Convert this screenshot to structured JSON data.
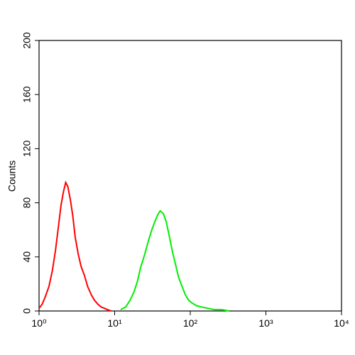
{
  "chart_data": {
    "type": "line",
    "y_label": "Counts",
    "x_log": true,
    "xlim": [
      1,
      10000
    ],
    "xticks": [
      {
        "value": 1,
        "label": "10⁰"
      },
      {
        "value": 10,
        "label": "10¹"
      },
      {
        "value": 100,
        "label": "10²"
      },
      {
        "value": 1000,
        "label": "10³"
      },
      {
        "value": 10000,
        "label": "10⁴"
      }
    ],
    "ylim": [
      0,
      200
    ],
    "yticks": [
      0,
      40,
      80,
      120,
      160,
      200
    ],
    "series": [
      {
        "color": "#ff0000",
        "x": [
          1.0,
          1.1,
          1.2,
          1.35,
          1.5,
          1.65,
          1.8,
          1.95,
          2.1,
          2.25,
          2.4,
          2.6,
          2.8,
          3.0,
          3.3,
          3.6,
          4.0,
          4.4,
          4.9,
          5.4,
          6.0,
          6.6,
          7.3,
          8.0,
          9.0
        ],
        "values": [
          2,
          5,
          10,
          18,
          30,
          45,
          62,
          78,
          88,
          95,
          92,
          82,
          70,
          55,
          42,
          33,
          26,
          18,
          12,
          8,
          5,
          3,
          2,
          1,
          0
        ]
      },
      {
        "color": "#00ee00",
        "x": [
          12,
          14,
          16,
          18,
          20,
          22,
          25,
          28,
          31,
          34,
          37,
          40,
          44,
          48,
          53,
          58,
          64,
          70,
          78,
          86,
          95,
          105,
          120,
          140,
          170,
          210,
          260,
          330
        ],
        "values": [
          1,
          3,
          8,
          14,
          22,
          32,
          42,
          52,
          60,
          66,
          71,
          74,
          72,
          66,
          55,
          44,
          34,
          25,
          18,
          12,
          8,
          6,
          4,
          3,
          2,
          1,
          1,
          0
        ]
      }
    ]
  }
}
